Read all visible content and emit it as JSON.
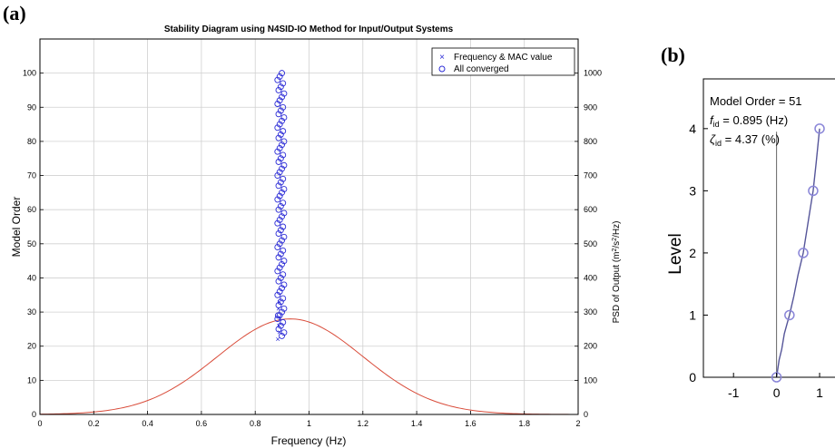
{
  "panel_a": {
    "label": "(a)"
  },
  "panel_b": {
    "label": "(b)"
  },
  "chart_data": [
    {
      "type": "scatter",
      "title": "Stability Diagram using N4SID-IO Method for Input/Output Systems",
      "xlabel": "Frequency (Hz)",
      "ylabel": "Model Order",
      "y2label_parts": [
        "PSD of Output (m",
        "2",
        "/s",
        "2",
        "/Hz)"
      ],
      "xlim": [
        0,
        2
      ],
      "ylim": [
        0,
        110
      ],
      "y2lim": [
        0,
        1100
      ],
      "xticks": [
        "0",
        "0.2",
        "0.4",
        "0.6",
        "0.8",
        "1",
        "1.2",
        "1.4",
        "1.6",
        "1.8",
        "2"
      ],
      "yticks": [
        "0",
        "10",
        "20",
        "30",
        "40",
        "50",
        "60",
        "70",
        "80",
        "90",
        "100"
      ],
      "y2ticks": [
        "0",
        "100",
        "200",
        "300",
        "400",
        "500",
        "600",
        "700",
        "800",
        "900",
        "1000"
      ],
      "grid": true,
      "legend_position": "top-right",
      "series": [
        {
          "name": "Frequency & MAC value",
          "marker": "x",
          "color": "#2b2bd6",
          "x": [
            0.884,
            0.89,
            0.888,
            0.892,
            0.886,
            0.89
          ],
          "y": [
            22,
            24,
            26,
            28,
            31,
            33
          ]
        },
        {
          "name": "All converged",
          "marker": "o",
          "color": "#2b2bd6",
          "x_center": 0.895,
          "y_range": [
            23,
            100
          ],
          "note_jitter": 0.012
        }
      ],
      "psd_curve": {
        "color": "#d94c3a",
        "peak_frequency": 0.93,
        "peak_value": 280,
        "x_range": [
          0,
          2
        ]
      }
    },
    {
      "type": "line",
      "xlabel": "",
      "ylabel": "Level",
      "xlim": [
        -1.7,
        1.4
      ],
      "ylim": [
        0,
        4.8
      ],
      "xticks": [
        "-1",
        "0",
        "1"
      ],
      "yticks": [
        "0",
        "1",
        "2",
        "3",
        "4"
      ],
      "annotation_lines": [
        {
          "text": "Model Order = 51"
        },
        {
          "sym": "f",
          "sub": "id",
          "rest": " = 0.895 (Hz)"
        },
        {
          "sym": "ζ",
          "sub": "id",
          "rest": " = 4.37 (%)"
        }
      ],
      "points": {
        "color": "#8a86d8",
        "x": [
          0,
          0.3,
          0.62,
          0.85,
          1.0
        ],
        "y": [
          0,
          1,
          2,
          3,
          4
        ]
      },
      "mode_line": {
        "color": "#555599",
        "x": [
          0,
          0.06,
          0.12,
          0.18,
          0.24,
          0.3,
          0.4,
          0.5,
          0.62,
          0.7,
          0.78,
          0.85,
          0.92,
          1.0
        ],
        "y": [
          0,
          0.28,
          0.45,
          0.7,
          0.85,
          1.0,
          1.3,
          1.65,
          2.0,
          2.35,
          2.7,
          3.0,
          3.45,
          4.0
        ]
      },
      "vertical_line_x": 0
    }
  ]
}
